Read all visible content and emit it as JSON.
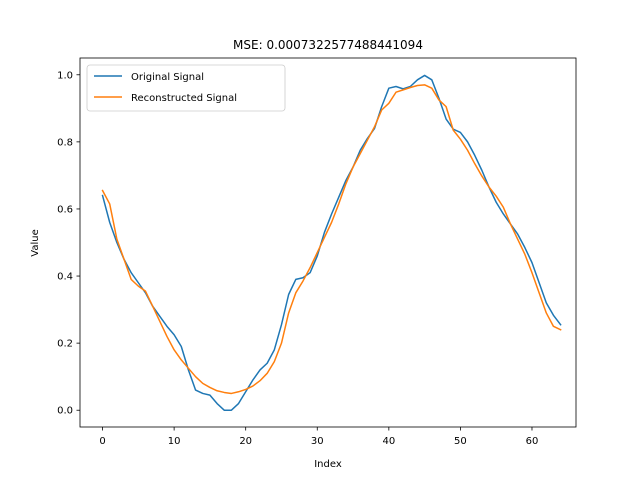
{
  "chart_data": {
    "type": "line",
    "title": "MSE: 0.0007322577488441094",
    "xlabel": "Index",
    "ylabel": "Value",
    "xlim": [
      -3.15,
      66.15
    ],
    "ylim": [
      -0.05,
      1.05
    ],
    "xticks": [
      0,
      10,
      20,
      30,
      40,
      50,
      60
    ],
    "yticks": [
      0.0,
      0.2,
      0.4,
      0.6,
      0.8,
      1.0
    ],
    "xtick_labels": [
      "0",
      "10",
      "20",
      "30",
      "40",
      "50",
      "60"
    ],
    "ytick_labels": [
      "0.0",
      "0.2",
      "0.4",
      "0.6",
      "0.8",
      "1.0"
    ],
    "grid": false,
    "legend_position": "top-left",
    "series": [
      {
        "name": "Original Signal",
        "color": "#1f77b4",
        "values": [
          0.64,
          0.56,
          0.5,
          0.45,
          0.41,
          0.38,
          0.35,
          0.31,
          0.28,
          0.25,
          0.225,
          0.19,
          0.12,
          0.06,
          0.05,
          0.045,
          0.02,
          0.0,
          0.0,
          0.02,
          0.055,
          0.09,
          0.12,
          0.14,
          0.18,
          0.255,
          0.345,
          0.39,
          0.395,
          0.41,
          0.46,
          0.53,
          0.585,
          0.635,
          0.685,
          0.725,
          0.775,
          0.81,
          0.84,
          0.905,
          0.96,
          0.965,
          0.958,
          0.965,
          0.985,
          0.998,
          0.985,
          0.93,
          0.868,
          0.838,
          0.828,
          0.8,
          0.76,
          0.715,
          0.665,
          0.62,
          0.585,
          0.555,
          0.525,
          0.485,
          0.44,
          0.38,
          0.32,
          0.283,
          0.255
        ]
      },
      {
        "name": "Reconstructed Signal",
        "color": "#ff7f0e",
        "values": [
          0.655,
          0.615,
          0.51,
          0.45,
          0.39,
          0.37,
          0.355,
          0.31,
          0.265,
          0.22,
          0.18,
          0.15,
          0.125,
          0.1,
          0.08,
          0.068,
          0.058,
          0.053,
          0.05,
          0.055,
          0.062,
          0.072,
          0.088,
          0.11,
          0.145,
          0.2,
          0.29,
          0.35,
          0.385,
          0.425,
          0.47,
          0.515,
          0.56,
          0.615,
          0.675,
          0.725,
          0.765,
          0.805,
          0.845,
          0.895,
          0.915,
          0.948,
          0.955,
          0.962,
          0.968,
          0.97,
          0.96,
          0.925,
          0.905,
          0.835,
          0.808,
          0.775,
          0.735,
          0.698,
          0.665,
          0.638,
          0.605,
          0.555,
          0.51,
          0.465,
          0.41,
          0.35,
          0.29,
          0.25,
          0.24
        ]
      }
    ]
  }
}
